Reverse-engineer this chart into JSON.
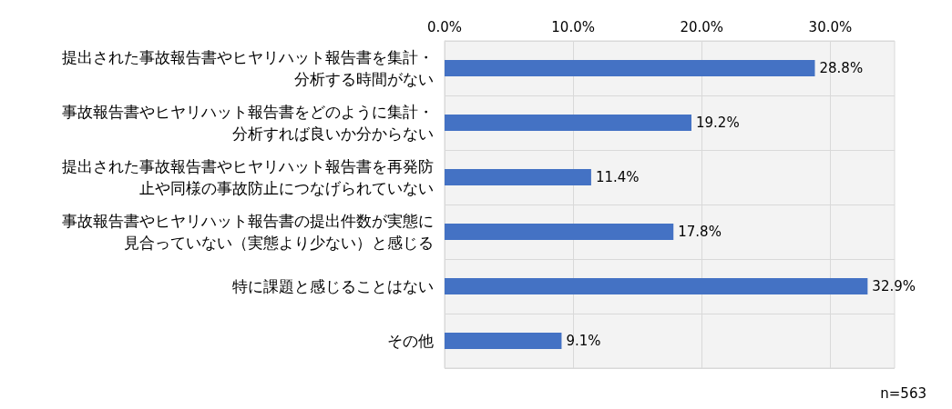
{
  "chart_data": {
    "type": "bar",
    "orientation": "horizontal",
    "categories": [
      "提出された事故報告書やヒヤリハット報告書を集計・分析する時間がない",
      "事故報告書やヒヤリハット報告書をどのように集計・分析すれば良いか分からない",
      "提出された事故報告書やヒヤリハット報告書を再発防止や同様の事故防止につなげられていない",
      "事故報告書やヒヤリハット報告書の提出件数が実態に見合っていない（実態より少ない）と感じる",
      "特に課題と感じることはない",
      "その他"
    ],
    "values": [
      28.8,
      19.2,
      11.4,
      17.8,
      32.9,
      9.1
    ],
    "value_labels": [
      "28.8%",
      "19.2%",
      "11.4%",
      "17.8%",
      "32.9%",
      "9.1%"
    ],
    "color": "#4472c4",
    "xlim": [
      0,
      35
    ],
    "xticks": [
      {
        "value": 0,
        "label": "0.0%"
      },
      {
        "value": 10,
        "label": "10.0%"
      },
      {
        "value": 20,
        "label": "20.0%"
      },
      {
        "value": 30,
        "label": "30.0%"
      }
    ],
    "grid": true,
    "annotations": [
      "n=563"
    ]
  }
}
